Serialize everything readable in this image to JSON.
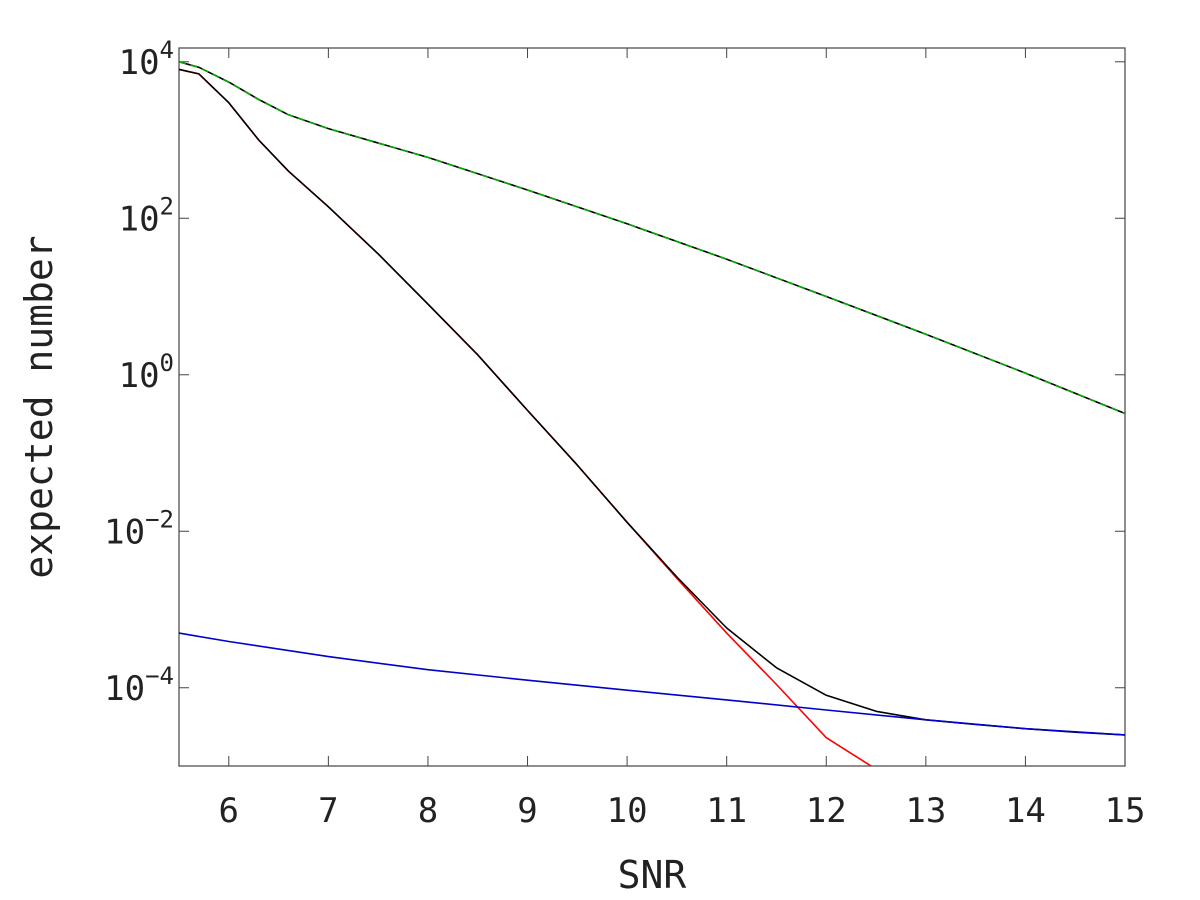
{
  "chart_data": {
    "type": "line",
    "xlabel": "SNR",
    "ylabel": "expected number",
    "xscale": "linear",
    "yscale": "log",
    "xlim": [
      5.5,
      15
    ],
    "ylim": [
      1e-05,
      15000
    ],
    "grid": false,
    "legend": "none",
    "x_ticks": [
      6,
      7,
      8,
      9,
      10,
      11,
      12,
      13,
      14,
      15
    ],
    "y_ticks": [
      {
        "value": 10000,
        "base": "10",
        "exp": "4"
      },
      {
        "value": 100,
        "base": "10",
        "exp": "2"
      },
      {
        "value": 1,
        "base": "10",
        "exp": "0"
      },
      {
        "value": 0.01,
        "base": "10",
        "exp": "−2"
      },
      {
        "value": 0.0001,
        "base": "10",
        "exp": "−4"
      }
    ],
    "series": [
      {
        "color": "#ff0000",
        "dash": "solid",
        "x": [
          5.5,
          5.7,
          6.0,
          6.3,
          6.6,
          7.0,
          7.5,
          8.0,
          8.5,
          9.0,
          9.5,
          10.0,
          10.5,
          11.0,
          11.5,
          12.0,
          12.45
        ],
        "y": [
          8000,
          7000,
          3000,
          1000,
          400,
          140,
          35,
          8,
          1.8,
          0.35,
          0.07,
          0.013,
          0.0025,
          0.0005,
          0.00011,
          2.3e-05,
          1e-05
        ]
      },
      {
        "color": "#000000",
        "dash": "solid",
        "x": [
          5.5,
          5.7,
          6.0,
          6.3,
          6.6,
          7.0,
          7.5,
          8.0,
          8.5,
          9.0,
          9.5,
          10.0,
          10.5,
          11.0,
          11.5,
          12.0,
          12.5,
          13.0,
          13.5,
          14.0,
          14.5,
          15.0
        ],
        "y": [
          8000,
          7000,
          3000,
          1000,
          400,
          140,
          35,
          8,
          1.8,
          0.35,
          0.07,
          0.013,
          0.0026,
          0.00058,
          0.00018,
          8e-05,
          5e-05,
          3.9e-05,
          3.4e-05,
          3e-05,
          2.7e-05,
          2.5e-05
        ]
      },
      {
        "color": "#0000cc",
        "dash": "solid",
        "x": [
          5.5,
          6.0,
          7.0,
          8.0,
          9.0,
          10.0,
          11.0,
          12.0,
          13.0,
          14.0,
          15.0
        ],
        "y": [
          0.0005,
          0.00039,
          0.00025,
          0.00017,
          0.000125,
          9.3e-05,
          7e-05,
          5.2e-05,
          3.9e-05,
          3e-05,
          2.5e-05
        ]
      },
      {
        "color": "#000000",
        "dash": "solid",
        "x": [
          5.5,
          5.7,
          6.0,
          6.3,
          6.6,
          7.0,
          8.0,
          9.0,
          10.0,
          11.0,
          12.0,
          13.0,
          14.0,
          15.0
        ],
        "y": [
          10000,
          8500,
          5500,
          3300,
          2100,
          1400,
          600,
          230,
          85,
          30,
          10,
          3.3,
          1.05,
          0.32
        ]
      },
      {
        "color": "#00aa00",
        "dash": "dashed",
        "x": [
          5.5,
          5.7,
          6.0,
          6.3,
          6.6,
          7.0,
          8.0,
          9.0,
          10.0,
          11.0,
          12.0,
          13.0,
          14.0,
          15.0
        ],
        "y": [
          10000,
          8500,
          5500,
          3300,
          2100,
          1400,
          600,
          230,
          85,
          30,
          10,
          3.3,
          1.05,
          0.32
        ]
      }
    ]
  }
}
